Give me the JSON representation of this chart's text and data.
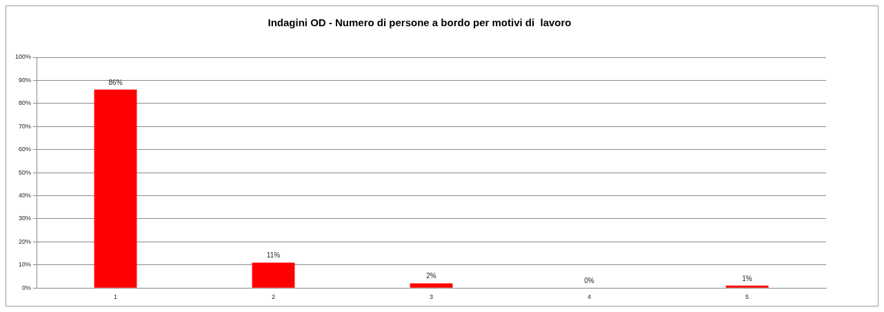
{
  "chart_data": {
    "type": "bar",
    "title": "Indagini OD - Numero di persone a bordo per motivi di  lavoro",
    "categories": [
      "1",
      "2",
      "3",
      "4",
      "5"
    ],
    "values": [
      86,
      11,
      2,
      0,
      1
    ],
    "value_labels": [
      "86%",
      "11%",
      "2%",
      "0%",
      "1%"
    ],
    "color": "#ff0000",
    "ylim": [
      0,
      100
    ],
    "yticks": [
      {
        "value": 0,
        "label": "0%"
      },
      {
        "value": 10,
        "label": "10%"
      },
      {
        "value": 20,
        "label": "20%"
      },
      {
        "value": 30,
        "label": "30%"
      },
      {
        "value": 40,
        "label": "40%"
      },
      {
        "value": 50,
        "label": "50%"
      },
      {
        "value": 60,
        "label": "60%"
      },
      {
        "value": 70,
        "label": "70%"
      },
      {
        "value": 80,
        "label": "80%"
      },
      {
        "value": 90,
        "label": "90%"
      },
      {
        "value": 100,
        "label": "100%"
      }
    ],
    "grid": "y",
    "legend": false
  }
}
